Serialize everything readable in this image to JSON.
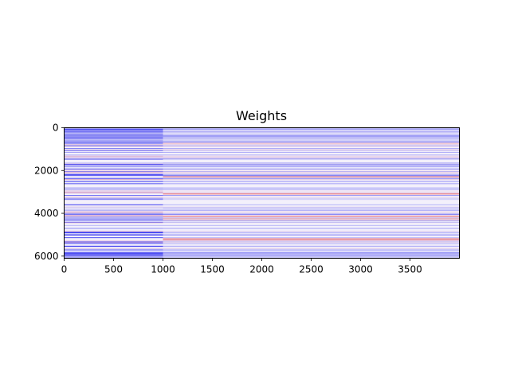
{
  "chart_data": {
    "type": "heatmap",
    "title": "Weights",
    "xlabel": "",
    "ylabel": "",
    "xlim": [
      0,
      4000
    ],
    "ylim": [
      6100,
      0
    ],
    "x_ticks": [
      0,
      500,
      1000,
      1500,
      2000,
      2500,
      3000,
      3500
    ],
    "x_tick_labels": [
      "0",
      "500",
      "1000",
      "1500",
      "2000",
      "2500",
      "3000",
      "3500"
    ],
    "y_ticks": [
      0,
      2000,
      4000,
      6000
    ],
    "y_tick_labels": [
      "0",
      "2000",
      "4000",
      "6000"
    ],
    "colormap": "bwr",
    "colors": {
      "negative": "#0000ff",
      "zero": "#ffffff",
      "positive": "#ff0000"
    },
    "grid": false,
    "pattern": "horizontal streaks: strongest blue at left (x<1000), fading to lighter blue/red toward the right; several red streaks around y≈2300, 3100, 4200, 5200"
  }
}
